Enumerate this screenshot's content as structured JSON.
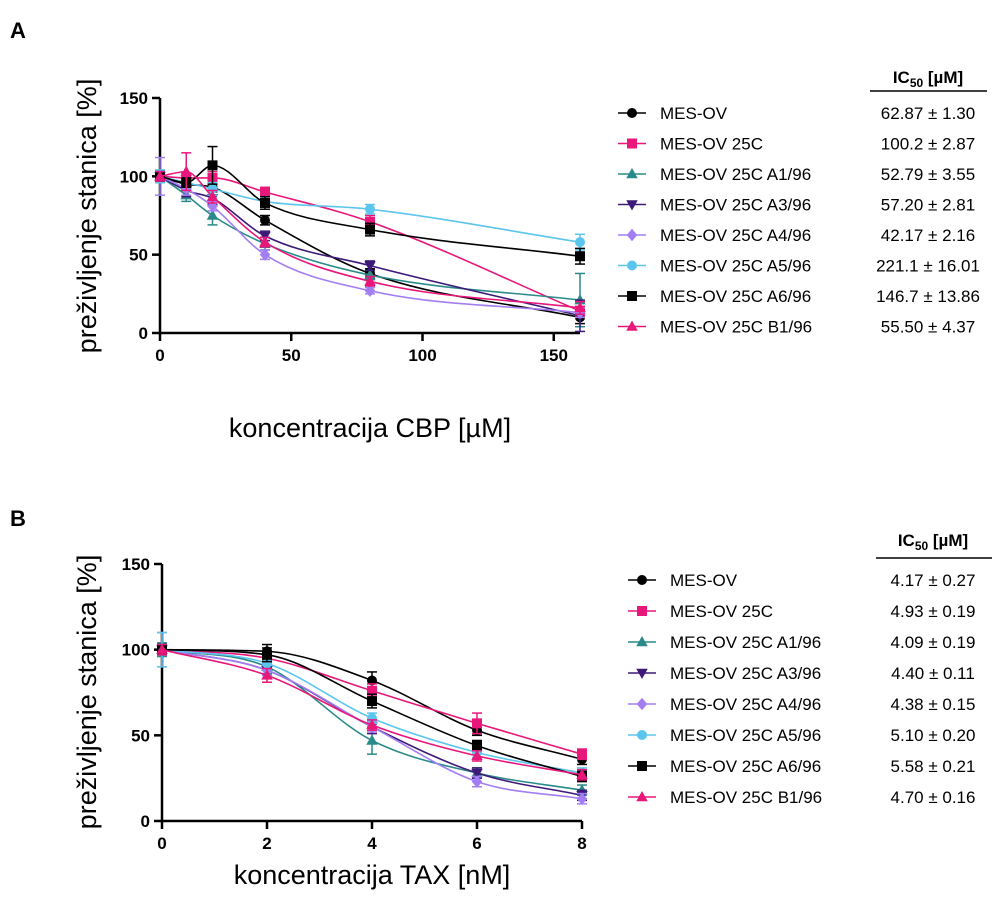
{
  "chart_data": [
    {
      "type": "line",
      "panel_label": "A",
      "xlabel": "koncentracija CBP [µM]",
      "ylabel": "preživljenje stanica [%]",
      "xlim": [
        0,
        160
      ],
      "ylim": [
        0,
        150
      ],
      "x_ticks": [
        "0",
        "50",
        "100",
        "150"
      ],
      "y_ticks": [
        "0",
        "50",
        "100",
        "150"
      ],
      "x": [
        0,
        10,
        20,
        40,
        80,
        160
      ],
      "ic50_header": "IC",
      "ic50_sub": "50",
      "ic50_unit": " [µM]",
      "series": [
        {
          "name": "MES-OV",
          "color": "#000000",
          "marker": "circle",
          "ic50": "62.87 ± 1.30",
          "values": [
            100,
            95,
            93,
            72,
            38,
            10
          ],
          "err": [
            3,
            4,
            5,
            3,
            3,
            4
          ]
        },
        {
          "name": "MES-OV 25C",
          "color": "#e8177a",
          "marker": "square",
          "ic50": "100.2 ± 2.87",
          "values": [
            100,
            99,
            99,
            90,
            71,
            14
          ],
          "err": [
            3,
            3,
            4,
            3,
            4,
            3
          ]
        },
        {
          "name": "MES-OV 25C A1/96",
          "color": "#2a8a8a",
          "marker": "triangle",
          "ic50": "52.79 ± 3.55",
          "values": [
            100,
            88,
            75,
            57,
            37,
            21
          ],
          "err": [
            4,
            4,
            6,
            4,
            3,
            17
          ]
        },
        {
          "name": "MES-OV 25C A3/96",
          "color": "#3d1a78",
          "marker": "triangle-down",
          "ic50": "57.20 ± 2.81",
          "values": [
            100,
            91,
            86,
            62,
            43,
            11
          ],
          "err": [
            3,
            4,
            4,
            3,
            3,
            10
          ]
        },
        {
          "name": "MES-OV 25C A4/96",
          "color": "#a37ef2",
          "marker": "diamond",
          "ic50": "42.17 ± 2.16",
          "values": [
            100,
            92,
            81,
            50,
            27,
            13
          ],
          "err": [
            12,
            4,
            3,
            3,
            2,
            3
          ]
        },
        {
          "name": "MES-OV 25C A5/96",
          "color": "#5bc5ee",
          "marker": "circle",
          "ic50": "221.1 ± 16.01",
          "values": [
            100,
            96,
            92,
            84,
            79,
            58
          ],
          "err": [
            4,
            3,
            4,
            3,
            3,
            5
          ]
        },
        {
          "name": "MES-OV 25C A6/96",
          "color": "#000000",
          "marker": "square",
          "ic50": "146.7 ± 13.86",
          "values": [
            100,
            96,
            107,
            83,
            66,
            49
          ],
          "err": [
            3,
            3,
            12,
            4,
            4,
            5
          ]
        },
        {
          "name": "MES-OV 25C B1/96",
          "color": "#e8177a",
          "marker": "triangle",
          "ic50": "55.50 ± 4.37",
          "values": [
            100,
            103,
            87,
            58,
            33,
            16
          ],
          "err": [
            3,
            12,
            4,
            3,
            3,
            4
          ]
        }
      ]
    },
    {
      "type": "line",
      "panel_label": "B",
      "xlabel": "koncentracija TAX [nM]",
      "ylabel": "preživljenje stanica [%]",
      "xlim": [
        0,
        8
      ],
      "ylim": [
        0,
        150
      ],
      "x_ticks": [
        "0",
        "2",
        "4",
        "6",
        "8"
      ],
      "y_ticks": [
        "0",
        "50",
        "100",
        "150"
      ],
      "x": [
        0,
        2,
        4,
        6,
        8
      ],
      "ic50_header": "IC",
      "ic50_sub": "50",
      "ic50_unit": " [µM]",
      "series": [
        {
          "name": "MES-OV",
          "color": "#000000",
          "marker": "circle",
          "ic50": "4.17 ± 0.27",
          "values": [
            100,
            99,
            82,
            53,
            36
          ],
          "err": [
            3,
            4,
            5,
            3,
            3
          ]
        },
        {
          "name": "MES-OV 25C",
          "color": "#e8177a",
          "marker": "square",
          "ic50": "4.93 ± 0.19",
          "values": [
            100,
            95,
            76,
            57,
            39
          ],
          "err": [
            3,
            3,
            4,
            6,
            3
          ]
        },
        {
          "name": "MES-OV 25C A1/96",
          "color": "#2a8a8a",
          "marker": "triangle",
          "ic50": "4.09 ± 0.19",
          "values": [
            100,
            90,
            47,
            28,
            18
          ],
          "err": [
            4,
            4,
            8,
            3,
            3
          ]
        },
        {
          "name": "MES-OV 25C A3/96",
          "color": "#3d1a78",
          "marker": "triangle-down",
          "ic50": "4.40 ± 0.11",
          "values": [
            100,
            88,
            55,
            28,
            15
          ],
          "err": [
            3,
            3,
            4,
            3,
            3
          ]
        },
        {
          "name": "MES-OV 25C A4/96",
          "color": "#a37ef2",
          "marker": "diamond",
          "ic50": "4.38 ± 0.15",
          "values": [
            100,
            88,
            55,
            23,
            13
          ],
          "err": [
            10,
            3,
            3,
            3,
            3
          ]
        },
        {
          "name": "MES-OV 25C A5/96",
          "color": "#5bc5ee",
          "marker": "circle",
          "ic50": "5.10 ± 0.20",
          "values": [
            100,
            92,
            60,
            40,
            28
          ],
          "err": [
            10,
            3,
            3,
            3,
            3
          ]
        },
        {
          "name": "MES-OV 25C A6/96",
          "color": "#000000",
          "marker": "square",
          "ic50": "5.58 ± 0.21",
          "values": [
            100,
            97,
            70,
            44,
            26
          ],
          "err": [
            3,
            4,
            4,
            3,
            3
          ]
        },
        {
          "name": "MES-OV 25C B1/96",
          "color": "#e8177a",
          "marker": "triangle",
          "ic50": "4.70 ± 0.16",
          "values": [
            100,
            85,
            56,
            38,
            27
          ],
          "err": [
            3,
            4,
            3,
            3,
            3
          ]
        }
      ]
    }
  ]
}
